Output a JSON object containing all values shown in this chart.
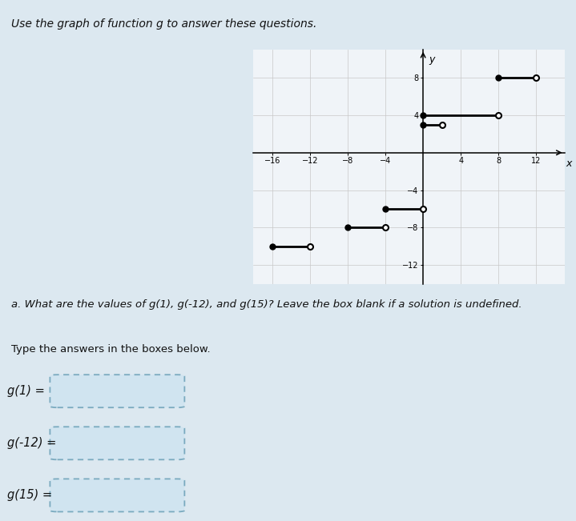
{
  "title": "Use the graph of function g to answer these questions.",
  "question_a": "a. What are the values of g(1), g(-12), and g(15)? Leave the box blank if a solution is undefined.",
  "type_answers": "Type the answers in the boxes below.",
  "labels": [
    "g(1) =",
    "g(-12) =",
    "g(15) ="
  ],
  "graph": {
    "xlim": [
      -18,
      15
    ],
    "ylim": [
      -14,
      11
    ],
    "xticks": [
      -16,
      -12,
      -8,
      -4,
      4,
      8,
      12
    ],
    "yticks": [
      -12,
      -8,
      -4,
      4,
      8
    ],
    "xlabel": "x",
    "ylabel": "y",
    "background_color": "#f0f4f8",
    "grid_color": "#c8c8c8",
    "segments": [
      {
        "x_start": 8,
        "x_end": 12,
        "y": 8,
        "closed_left": true,
        "closed_right": false
      },
      {
        "x_start": 0,
        "x_end": 8,
        "y": 4,
        "closed_left": true,
        "closed_right": false
      },
      {
        "x_start": 0,
        "x_end": 2,
        "y": 3,
        "closed_left": true,
        "closed_right": false
      },
      {
        "x_start": -4,
        "x_end": 0,
        "y": -6,
        "closed_left": true,
        "closed_right": false
      },
      {
        "x_start": -8,
        "x_end": -4,
        "y": -8,
        "closed_left": true,
        "closed_right": false
      },
      {
        "x_start": -16,
        "x_end": -12,
        "y": -10,
        "closed_left": true,
        "closed_right": false
      }
    ]
  },
  "bg_page_color": "#dce8f0",
  "text_color": "#111111",
  "box_fill": "#d0e4f0",
  "box_edge": "#7aaabf"
}
